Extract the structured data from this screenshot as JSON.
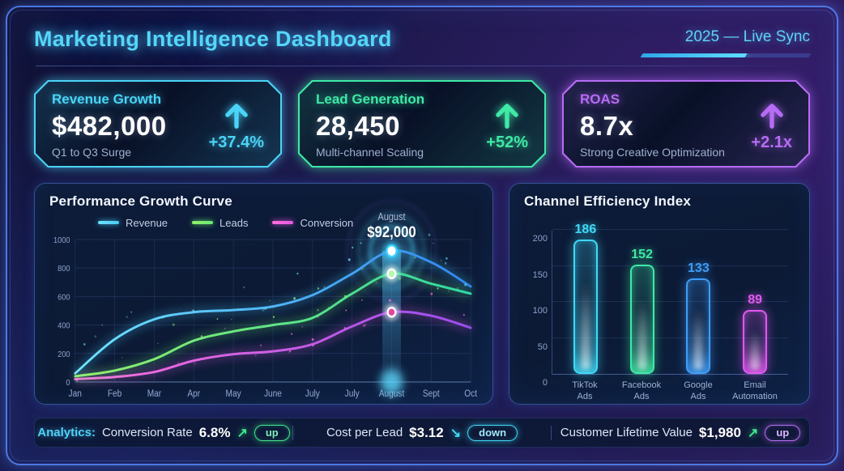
{
  "header": {
    "title": "Marketing Intelligence Dashboard",
    "status": "2025 — Live Sync"
  },
  "kpis": [
    {
      "title": "Revenue Growth",
      "value": "$482,000",
      "delta": "+37.4%",
      "subtitle": "Q1 to Q3 Surge",
      "accent": "#4ad4f7"
    },
    {
      "title": "Lead Generation",
      "value": "28,450",
      "delta": "+52%",
      "subtitle": "Multi-channel Scaling",
      "accent": "#3fe9a6"
    },
    {
      "title": "ROAS",
      "value": "8.7x",
      "delta": "+2.1x",
      "subtitle": "Strong Creative Optimization",
      "accent": "#b66cf5"
    }
  ],
  "chart_data": [
    {
      "type": "line",
      "title": "Performance Growth Curve",
      "categories": [
        "Jan",
        "Feb",
        "Mar",
        "Apr",
        "May",
        "June",
        "July",
        "July",
        "August",
        "Sept",
        "Oct"
      ],
      "series": [
        {
          "name": "Revenue",
          "color": "#49c9f5",
          "color_start": "#6fe4ff",
          "color_end": "#2f86f0",
          "values": [
            60,
            300,
            440,
            490,
            505,
            530,
            610,
            760,
            920,
            840,
            670
          ]
        },
        {
          "name": "Leads",
          "color": "#66e873",
          "color_start": "#93f06a",
          "color_end": "#2fd9a2",
          "values": [
            40,
            80,
            160,
            290,
            355,
            400,
            450,
            620,
            760,
            690,
            620
          ]
        },
        {
          "name": "Conversion",
          "color": "#e459e2",
          "color_start": "#ff70dd",
          "color_end": "#9a4cf0",
          "values": [
            20,
            35,
            70,
            150,
            195,
            215,
            265,
            390,
            490,
            465,
            380
          ]
        }
      ],
      "ylim": [
        0,
        1000
      ],
      "yticks": [
        0,
        200,
        400,
        600,
        800,
        1000
      ],
      "grid": true,
      "legend_position": "top",
      "annotation": {
        "label": "August",
        "value": "$92,000",
        "category_index": 8
      }
    },
    {
      "type": "bar",
      "title": "Channel Efficiency Index",
      "categories": [
        "TikTok Ads",
        "Facebook Ads",
        "Google Ads",
        "Email Automation"
      ],
      "values": [
        186,
        152,
        133,
        89
      ],
      "colors": [
        "#3fd9f6",
        "#3fe9a4",
        "#3f9df6",
        "#e058ee"
      ],
      "ylim": [
        0,
        200
      ],
      "yticks": [
        0,
        50,
        100,
        150,
        200
      ],
      "grid": true
    }
  ],
  "footer": {
    "items": [
      {
        "prefix": "Analytics:",
        "label": "Conversion Rate",
        "value": "6.8%",
        "arrow": "↗",
        "arrow_color": "#3fe98c",
        "badge": "up",
        "badge_color": "#3fe98c",
        "badge_text_color": "#7df0b4"
      },
      {
        "prefix": "",
        "label": "Cost per Lead",
        "value": "$3.12",
        "arrow": "↘",
        "arrow_color": "#3fd9f6",
        "badge": "down",
        "badge_color": "#3fd9f6",
        "badge_text_color": "#9fe9fb"
      },
      {
        "prefix": "",
        "label": "Customer Lifetime Value",
        "value": "$1,980",
        "arrow": "↗",
        "arrow_color": "#3fe98c",
        "badge": "up",
        "badge_color": "#b66cf5",
        "badge_text_color": "#dcb8ff"
      }
    ]
  }
}
